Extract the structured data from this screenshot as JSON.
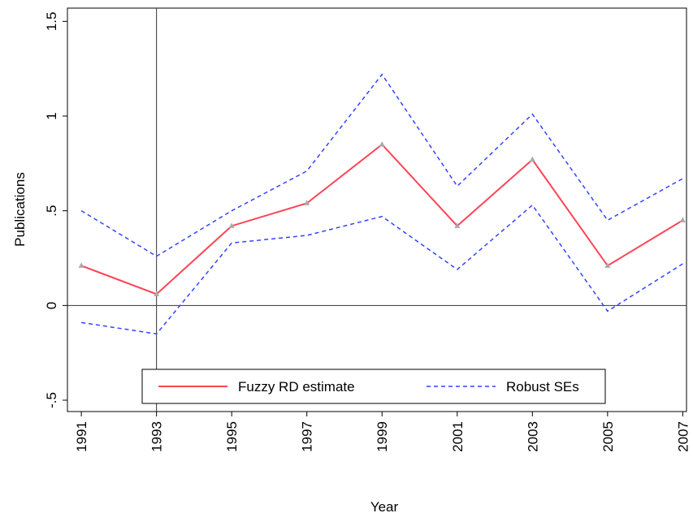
{
  "chart_data": {
    "type": "line",
    "x_label": "Year",
    "y_label": "Publications",
    "x": [
      1991,
      1993,
      1995,
      1997,
      1999,
      2001,
      2003,
      2005,
      2007
    ],
    "series": [
      {
        "name": "Fuzzy RD estimate",
        "color": "#ff4455",
        "values": [
          0.21,
          0.06,
          0.42,
          0.54,
          0.85,
          0.42,
          0.77,
          0.21,
          0.45
        ]
      },
      {
        "name": "Robust SEs",
        "color": "#3344ff",
        "upper": [
          0.5,
          0.26,
          0.5,
          0.71,
          1.22,
          0.63,
          1.01,
          0.45,
          0.67
        ],
        "lower": [
          -0.09,
          -0.15,
          0.33,
          0.37,
          0.47,
          0.19,
          0.53,
          -0.03,
          0.22
        ]
      }
    ],
    "xlim": [
      1990.63,
      2007.1
    ],
    "xticks": [
      1991,
      1993,
      1995,
      1997,
      1999,
      2001,
      2003,
      2005,
      2007
    ],
    "ylim": [
      -0.56,
      1.57
    ],
    "yticks": [
      {
        "value": -0.5,
        "label": "-.5"
      },
      0,
      {
        "value": 0.5,
        "label": ".5"
      },
      1,
      1.5
    ],
    "reference_lines": {
      "x": 1993,
      "y": 0
    },
    "legend": "bottom",
    "grid": false
  }
}
